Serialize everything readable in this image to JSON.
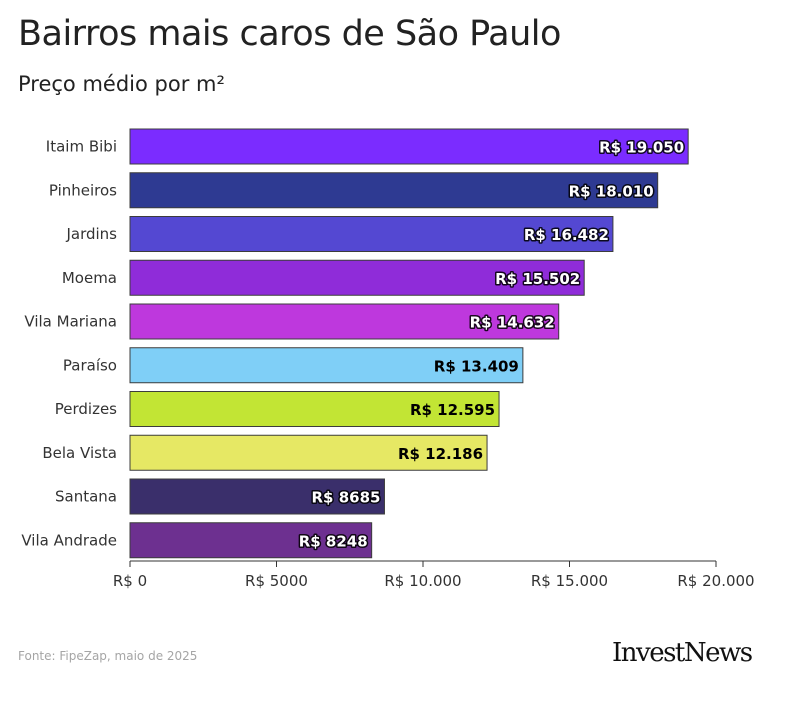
{
  "title": "Bairros mais caros de São Paulo",
  "subtitle": "Preço médio por m²",
  "source": "Fonte: FipeZap, maio de 2025",
  "logo": "InvestNews",
  "chart_data": {
    "type": "bar",
    "orientation": "horizontal",
    "categories": [
      "Itaim Bibi",
      "Pinheiros",
      "Jardins",
      "Moema",
      "Vila Mariana",
      "Paraíso",
      "Perdizes",
      "Bela Vista",
      "Santana",
      "Vila Andrade"
    ],
    "values": [
      19050,
      18010,
      16482,
      15502,
      14632,
      13409,
      12595,
      12186,
      8685,
      8248
    ],
    "value_labels": [
      "R$ 19.050",
      "R$ 18.010",
      "R$ 16.482",
      "R$ 15.502",
      "R$ 14.632",
      "R$ 13.409",
      "R$ 12.595",
      "R$ 12.186",
      "R$ 8685",
      "R$ 8248"
    ],
    "colors": [
      "#7b2cff",
      "#2e3a92",
      "#5448d2",
      "#8f2cd9",
      "#be38dd",
      "#7fcff7",
      "#c2e534",
      "#e6e864",
      "#3a2f6b",
      "#6d3090"
    ],
    "label_colors": [
      "#ffffff",
      "#ffffff",
      "#ffffff",
      "#ffffff",
      "#ffffff",
      "#000000",
      "#000000",
      "#000000",
      "#ffffff",
      "#ffffff"
    ],
    "xlim": [
      0,
      20000
    ],
    "xticks": [
      0,
      5000,
      10000,
      15000,
      20000
    ],
    "xtick_labels": [
      "R$ 0",
      "R$ 5000",
      "R$ 10.000",
      "R$ 15.000",
      "R$ 20.000"
    ],
    "grid": false
  }
}
